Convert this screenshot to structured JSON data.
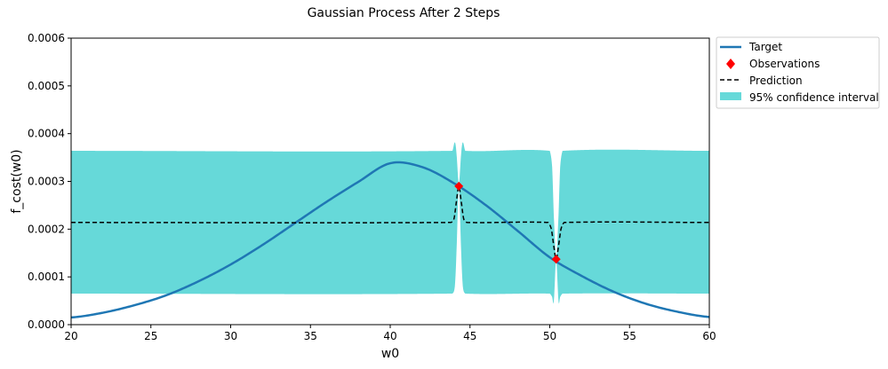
{
  "chart_data": {
    "type": "line",
    "title": "Gaussian Process After 2 Steps",
    "xlabel": "w0",
    "ylabel": "f_cost(w0)",
    "xlim": [
      20,
      60
    ],
    "ylim": [
      0,
      0.0006
    ],
    "x_ticks": [
      20,
      25,
      30,
      35,
      40,
      45,
      50,
      55,
      60
    ],
    "x_tick_labels": [
      "20",
      "25",
      "30",
      "35",
      "40",
      "45",
      "50",
      "55",
      "60"
    ],
    "y_ticks": [
      0,
      0.0001,
      0.0002,
      0.0003,
      0.0004,
      0.0005,
      0.0006
    ],
    "y_tick_labels": [
      "0.0000",
      "0.0001",
      "0.0002",
      "0.0003",
      "0.0004",
      "0.0005",
      "0.0006"
    ],
    "grid": false,
    "legend_placement": "outside top-right",
    "legend": [
      {
        "label": "Target",
        "kind": "line",
        "color": "#1f77b4"
      },
      {
        "label": "Observations",
        "kind": "marker",
        "color": "#ff0000"
      },
      {
        "label": "Prediction",
        "kind": "dashed",
        "color": "#000000"
      },
      {
        "label": "95% confidence interval",
        "kind": "patch",
        "color": "#66d9d9"
      }
    ],
    "target": {
      "name": "Target",
      "color": "#1f77b4",
      "x": [
        20,
        22,
        24,
        26,
        28,
        30,
        32,
        34,
        36,
        38,
        40,
        42,
        44,
        46,
        48,
        50,
        52,
        54,
        56,
        58,
        60
      ],
      "y": [
        1.5e-05,
        2.5e-05,
        4.1e-05,
        6.2e-05,
        9.1e-05,
        0.000126,
        0.000167,
        0.000212,
        0.000257,
        0.000299,
        0.000338,
        0.00033,
        0.000296,
        0.00025,
        0.000196,
        0.000141,
        0.000102,
        6.9e-05,
        4.4e-05,
        2.7e-05,
        1.6e-05
      ]
    },
    "observations": {
      "name": "Observations",
      "color": "#ff0000",
      "x": [
        44.3,
        50.4
      ],
      "y": [
        0.00029,
        0.000137
      ]
    },
    "prediction": {
      "name": "Prediction",
      "color": "#000000",
      "baseline": 0.000214,
      "x": [
        20,
        43.8,
        44.0,
        44.15,
        44.3,
        44.45,
        44.6,
        44.8,
        49.9,
        50.1,
        50.25,
        50.4,
        50.55,
        50.7,
        50.9,
        60
      ],
      "y": [
        0.000214,
        0.000214,
        0.000222,
        0.000258,
        0.00029,
        0.000258,
        0.000222,
        0.000214,
        0.000214,
        0.0002,
        0.000165,
        0.000137,
        0.000165,
        0.0002,
        0.000214,
        0.000214
      ]
    },
    "confidence": {
      "name": "95% confidence interval",
      "color": "#66d9d9",
      "x": [
        20,
        43.9,
        44.05,
        44.15,
        44.3,
        44.45,
        44.55,
        44.7,
        50.0,
        50.15,
        50.25,
        50.4,
        50.55,
        50.65,
        50.8,
        60
      ],
      "upper": [
        0.000364,
        0.000364,
        0.000382,
        0.00036,
        0.000295,
        0.00036,
        0.000382,
        0.000364,
        0.000364,
        0.00033,
        0.00023,
        0.00014,
        0.00023,
        0.00033,
        0.000364,
        0.000364
      ],
      "lower": [
        6.5e-05,
        6.5e-05,
        8e-05,
        0.00015,
        0.000287,
        0.00015,
        8e-05,
        6.5e-05,
        6.5e-05,
        5.8e-05,
        4.8e-05,
        0.000135,
        4.8e-05,
        5.8e-05,
        6.5e-05,
        6.5e-05
      ]
    }
  }
}
